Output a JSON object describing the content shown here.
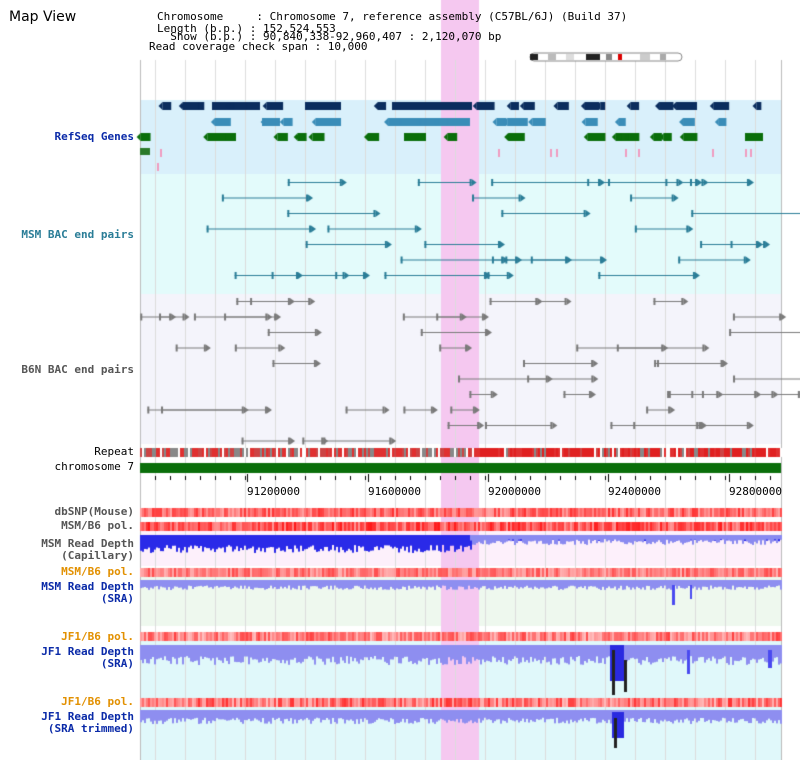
{
  "app": {
    "title": "Map View"
  },
  "info": {
    "chromosome_line": "Chromosome     : Chromosome 7, reference assembly (C57BL/6J) (Build 37)",
    "length_line": "Length (b.p.) : 152,524,553",
    "show_line": "  Show (b.p.) : 90,840,338-92,960,407 : 2,120,070 bp",
    "coverage_line": "Read coverage check span : 10,000"
  },
  "tracks": {
    "refseq": "RefSeq Genes",
    "msm_bac": "MSM BAC end pairs",
    "b6n_bac": "B6N BAC end pairs",
    "repeat": "Repeat",
    "chromosome": "chromosome 7",
    "dbsnp": "dbSNP(Mouse)",
    "msm_b6_pol1": "MSM/B6 pol.",
    "msm_depth_cap_1": "MSM Read Depth",
    "msm_depth_cap_2": "(Capillary)",
    "msm_b6_pol2": "MSM/B6 pol.",
    "msm_depth_sra_1": "MSM Read Depth",
    "msm_depth_sra_2": "(SRA)",
    "jf1_b6_pol1": "JF1/B6 pol.",
    "jf1_depth_sra_1": "JF1 Read Depth",
    "jf1_depth_sra_2": "(SRA)",
    "jf1_b6_pol2": "JF1/B6 pol.",
    "jf1_depth_trim_1": "JF1 Read Depth",
    "jf1_depth_trim_2": "(SRA trimmed)"
  },
  "axis": {
    "ticks": [
      {
        "value": 91200000,
        "label": "91200000"
      },
      {
        "value": 91600000,
        "label": "91600000"
      },
      {
        "value": 92000000,
        "label": "92000000"
      },
      {
        "value": 92400000,
        "label": "92400000"
      },
      {
        "value": 92800000,
        "label": "92800000"
      }
    ],
    "range": [
      90840338,
      92960407
    ]
  },
  "colors": {
    "refseq_bg": "#d9f0fb",
    "bac_bg": "#e3fbfb",
    "highlight": "#f5c8f0",
    "chromosome": "#0a6e0a",
    "depth_blue": "#2a2ae8",
    "depth_light": "#8e8ef0",
    "pol_red": "#e03030"
  }
}
